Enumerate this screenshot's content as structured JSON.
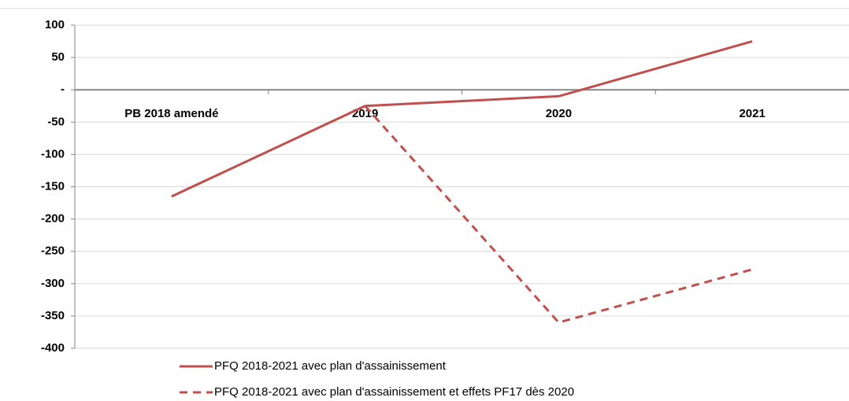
{
  "chart_data": {
    "type": "line",
    "categories": [
      "PB 2018 amendé",
      "2019",
      "2020",
      "2021"
    ],
    "series": [
      {
        "name": "PFQ 2018-2021 avec plan d'assainissement",
        "color": "#c0504d",
        "dashed": false,
        "values": [
          -165,
          -25,
          -10,
          75
        ]
      },
      {
        "name": "PFQ 2018-2021 avec plan d'assainissement et effets PF17 dès 2020",
        "color": "#c0504d",
        "dashed": true,
        "values": [
          null,
          -25,
          -360,
          -278
        ]
      }
    ],
    "ylim": [
      -400,
      100
    ],
    "yticks": [
      100,
      50,
      {
        "value": 0,
        "label": "-"
      },
      -50,
      -100,
      -150,
      -200,
      -250,
      -300,
      -350,
      -400
    ],
    "grid": true
  }
}
